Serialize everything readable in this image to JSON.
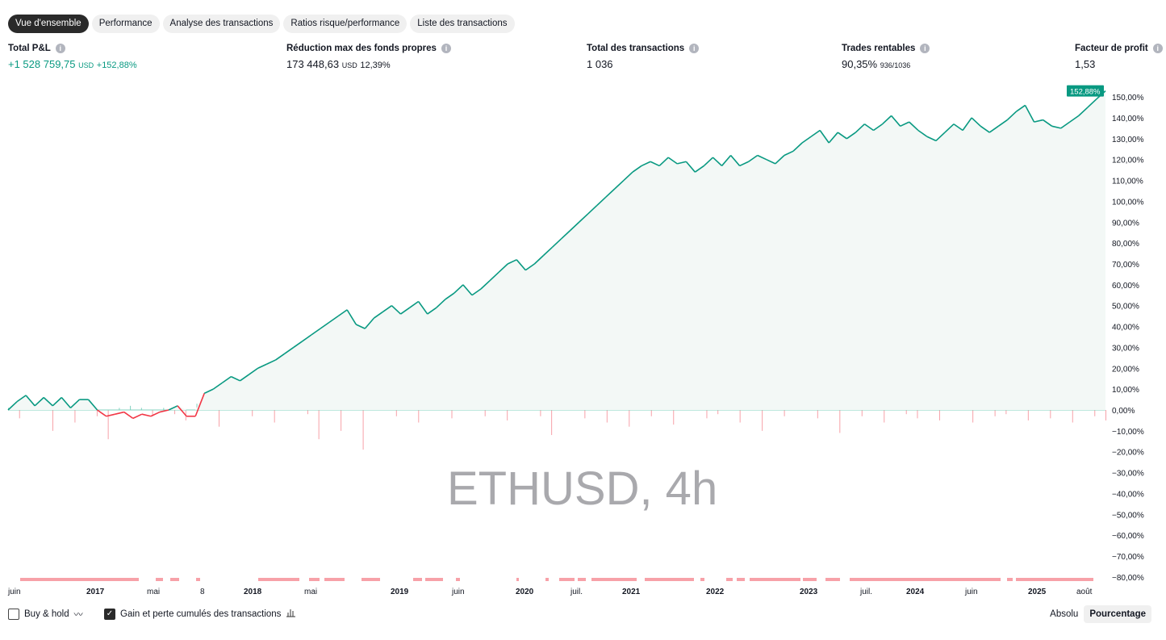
{
  "tabs": [
    {
      "label": "Vue d'ensemble",
      "active": true
    },
    {
      "label": "Performance"
    },
    {
      "label": "Analyse des transactions"
    },
    {
      "label": "Ratios risque/performance"
    },
    {
      "label": "Liste des transactions"
    }
  ],
  "metrics": {
    "total_pnl": {
      "label": "Total P&L",
      "value": "+1 528 759,75",
      "unit": "USD",
      "pct": "+152,88%"
    },
    "max_drawdown": {
      "label": "Réduction max des fonds propres",
      "value": "173 448,63",
      "unit": "USD",
      "pct": "12,39%"
    },
    "total_trades": {
      "label": "Total des transactions",
      "value": "1 036"
    },
    "profitable": {
      "label": "Trades rentables",
      "value": "90,35%",
      "detail": "936/1036"
    },
    "profit_factor": {
      "label": "Facteur de profit",
      "value": "1,53"
    }
  },
  "watermark": "ETHUSD, 4h",
  "colors": {
    "profit": "#089981",
    "loss": "#f23645",
    "fill": "#f3f8f6",
    "drawdown": "#f7a1a8"
  },
  "chart_data": {
    "type": "line",
    "ylim": [
      -85,
      155
    ],
    "y_ticks": [
      "150,00%",
      "140,00%",
      "130,00%",
      "120,00%",
      "110,00%",
      "100,00%",
      "90,00%",
      "80,00%",
      "70,00%",
      "60,00%",
      "50,00%",
      "40,00%",
      "30,00%",
      "20,00%",
      "10,00%",
      "0,00%",
      "−10,00%",
      "−20,00%",
      "−30,00%",
      "−40,00%",
      "−50,00%",
      "−60,00%",
      "−70,00%",
      "−80,00%"
    ],
    "x_ticks": [
      {
        "label": "juin",
        "bold": false
      },
      {
        "label": "2017",
        "bold": true
      },
      {
        "label": "mai",
        "bold": false
      },
      {
        "label": "8",
        "bold": false
      },
      {
        "label": "2018",
        "bold": true
      },
      {
        "label": "mai",
        "bold": false
      },
      {
        "label": "2019",
        "bold": true
      },
      {
        "label": "juin",
        "bold": false
      },
      {
        "label": "2020",
        "bold": true
      },
      {
        "label": "juil.",
        "bold": false
      },
      {
        "label": "2021",
        "bold": true
      },
      {
        "label": "2022",
        "bold": true
      },
      {
        "label": "2023",
        "bold": true
      },
      {
        "label": "juil.",
        "bold": false
      },
      {
        "label": "2024",
        "bold": true
      },
      {
        "label": "juin",
        "bold": false
      },
      {
        "label": "2025",
        "bold": true
      },
      {
        "label": "août",
        "bold": false
      }
    ],
    "last_value_label": "152,88%",
    "equity_pct": [
      0,
      4,
      7,
      2,
      6,
      2,
      6,
      1,
      5,
      5,
      0,
      -3,
      -2,
      -1,
      -4,
      -2,
      -3,
      -1,
      0,
      2,
      -3,
      -3,
      8,
      10,
      13,
      16,
      14,
      17,
      20,
      22,
      24,
      27,
      30,
      33,
      36,
      39,
      42,
      45,
      48,
      41,
      39,
      44,
      47,
      50,
      46,
      49,
      52,
      46,
      49,
      53,
      56,
      60,
      55,
      58,
      62,
      66,
      70,
      72,
      67,
      70,
      74,
      78,
      82,
      86,
      90,
      94,
      98,
      102,
      106,
      110,
      114,
      117,
      119,
      117,
      121,
      118,
      119,
      114,
      117,
      121,
      117,
      122,
      117,
      119,
      122,
      120,
      118,
      122,
      124,
      128,
      131,
      134,
      128,
      133,
      130,
      133,
      137,
      134,
      137,
      141,
      136,
      138,
      134,
      131,
      129,
      133,
      137,
      134,
      140,
      136,
      133,
      136,
      139,
      143,
      146,
      138,
      139,
      136,
      135,
      138,
      141,
      145,
      149,
      152.88
    ],
    "trade_pnl_pct": [
      1,
      -4,
      1,
      2,
      -10,
      1,
      -6,
      2,
      -3,
      -14,
      1,
      2,
      1,
      -3,
      1,
      -2,
      -5,
      3,
      1,
      -8,
      1,
      2,
      -3,
      1,
      -6,
      2,
      1,
      -2,
      -14,
      1,
      -10,
      3,
      -19,
      1,
      2,
      -3,
      1,
      -6,
      1,
      2,
      -4,
      1,
      1,
      -3,
      1,
      -5,
      2,
      1,
      -3,
      -12,
      4,
      1,
      -4,
      1,
      -6,
      2,
      -8,
      1,
      -3,
      1,
      -7,
      2,
      1,
      -4,
      -2,
      1,
      -6,
      5,
      -10,
      1,
      -3,
      1,
      2,
      -4,
      1,
      -11,
      1,
      -3,
      2,
      -6,
      1,
      -2,
      -4,
      1,
      -5,
      1,
      2,
      -6,
      1,
      -3,
      -2,
      1,
      -5,
      1,
      -4,
      2,
      -6,
      1,
      -3,
      -5
    ]
  },
  "footer": {
    "buy_hold": "Buy & hold",
    "buy_hold_checked": false,
    "cum_pnl": "Gain et perte cumulés des transactions",
    "cum_pnl_checked": true,
    "absolute": "Absolu",
    "percentage": "Pourcentage",
    "selected": "Pourcentage"
  }
}
